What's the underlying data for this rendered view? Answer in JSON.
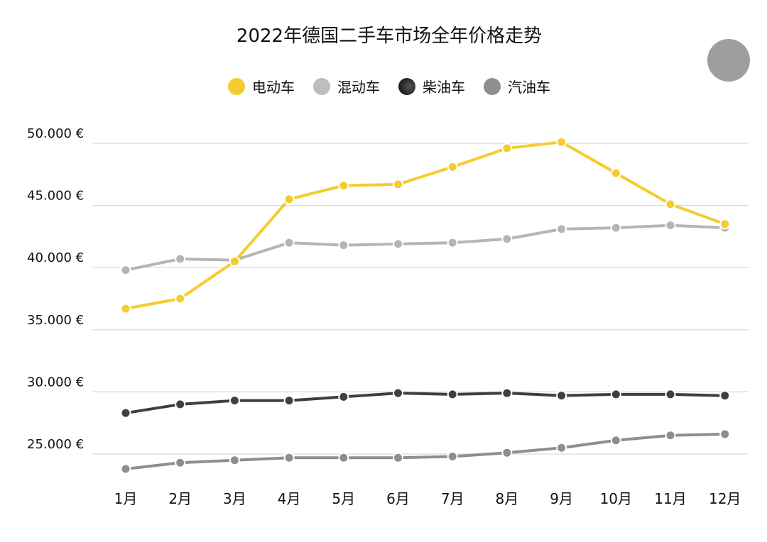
{
  "chart_data": {
    "type": "line",
    "title": "2022年德国二手车市场全年价格走势",
    "categories": [
      "1月",
      "2月",
      "3月",
      "4月",
      "5月",
      "6月",
      "7月",
      "8月",
      "9月",
      "10月",
      "11月",
      "12月"
    ],
    "ylim": [
      22000,
      51000
    ],
    "yticks": [
      25000,
      30000,
      35000,
      40000,
      45000,
      50000
    ],
    "ytick_labels": [
      "25.000 €",
      "30.000 €",
      "35.000 €",
      "40.000 €",
      "45.000 €",
      "50.000 €"
    ],
    "grid": true,
    "legend_position": "top-center",
    "series": [
      {
        "name": "电动车",
        "color": "#f5cc2d",
        "values": [
          36700,
          37500,
          40500,
          45500,
          46600,
          46700,
          48100,
          49600,
          50100,
          47600,
          45100,
          43500
        ]
      },
      {
        "name": "混动车",
        "color": "#b5b5b5",
        "values": [
          39800,
          40700,
          40600,
          42000,
          41800,
          41900,
          42000,
          42300,
          43100,
          43200,
          43400,
          43200
        ]
      },
      {
        "name": "柴油车",
        "color": "#3f3f3f",
        "values": [
          28300,
          29000,
          29300,
          29300,
          29600,
          29900,
          29800,
          29900,
          29700,
          29800,
          29800,
          29700
        ]
      },
      {
        "name": "汽油车",
        "color": "#8e8e8e",
        "values": [
          23800,
          24300,
          24500,
          24700,
          24700,
          24700,
          24800,
          25100,
          25500,
          26100,
          26500,
          26600
        ]
      }
    ]
  },
  "legend_colors": {
    "ev": "#f5cc2d",
    "hybrid": "#bdbdbd",
    "diesel": "#2e2e2e",
    "petrol": "#8e8e8e"
  }
}
